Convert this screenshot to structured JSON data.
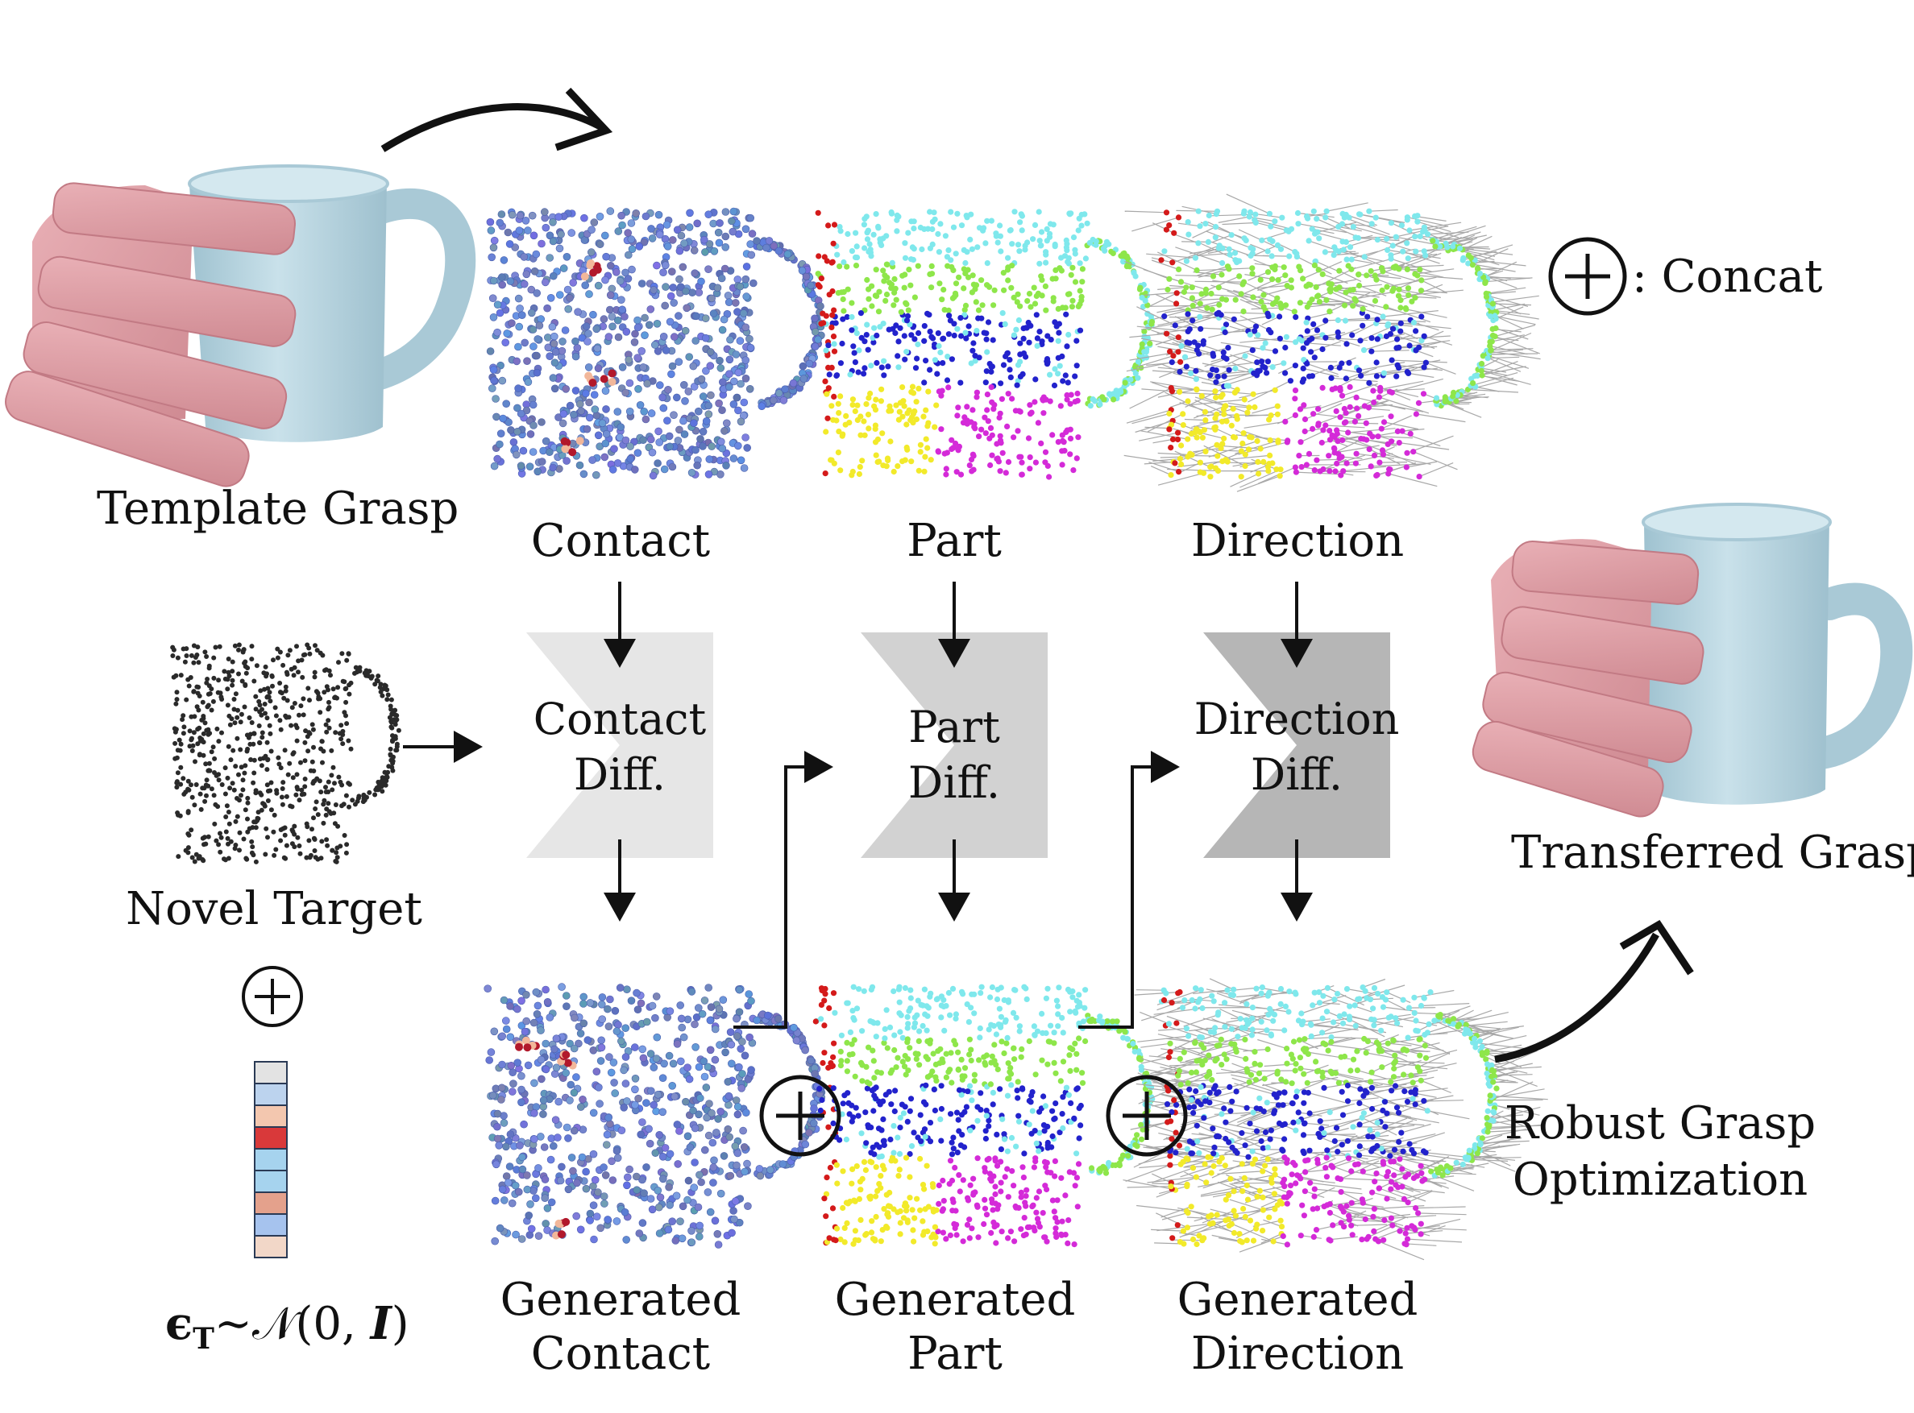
{
  "labels": {
    "template_grasp": "Template Grasp",
    "contact": "Contact",
    "part": "Part",
    "direction": "Direction",
    "novel_target": "Novel Target",
    "contact_diff_line1": "Contact",
    "contact_diff_line2": "Diff.",
    "part_diff_line1": "Part",
    "part_diff_line2": "Diff.",
    "direction_diff_line1": "Direction",
    "direction_diff_line2": "Diff.",
    "generated_contact_line1": "Generated",
    "generated_contact_line2": "Contact",
    "generated_part_line1": "Generated",
    "generated_part_line2": "Part",
    "generated_direction_line1": "Generated",
    "generated_direction_line2": "Direction",
    "transferred_grasp": "Transferred Grasp",
    "robust_line1": "Robust Grasp",
    "robust_line2": "Optimization",
    "concat_legend": ": Concat",
    "formula_eps": "ϵ",
    "formula_sub": "T",
    "formula_rest": "∼𝒩(0, ",
    "formula_I": "I",
    "formula_close": ")"
  },
  "colors": {
    "hand": "#e2a3aa",
    "mug": "#b4d4e0",
    "contact_diff_block": "#e6e6e6",
    "part_diff_block": "#d2d2d2",
    "direction_diff_block": "#b6b6b6",
    "contact_low": "#6f86d6",
    "contact_high": "#b2182b",
    "part_cyan": "#7fe8ec",
    "part_green": "#8ee64a",
    "part_blue": "#2222cc",
    "part_magenta": "#d42ad8",
    "part_yellow": "#f2ea2a",
    "part_red": "#d41a1a",
    "direction_line": "#a8a8a8"
  },
  "noise_vector": [
    "#e3e3e3",
    "#bcd3ee",
    "#f3c7af",
    "#d9393a",
    "#a6d3ee",
    "#a6d3ee",
    "#e4a18c",
    "#a6c3ee",
    "#f2d7c8"
  ]
}
